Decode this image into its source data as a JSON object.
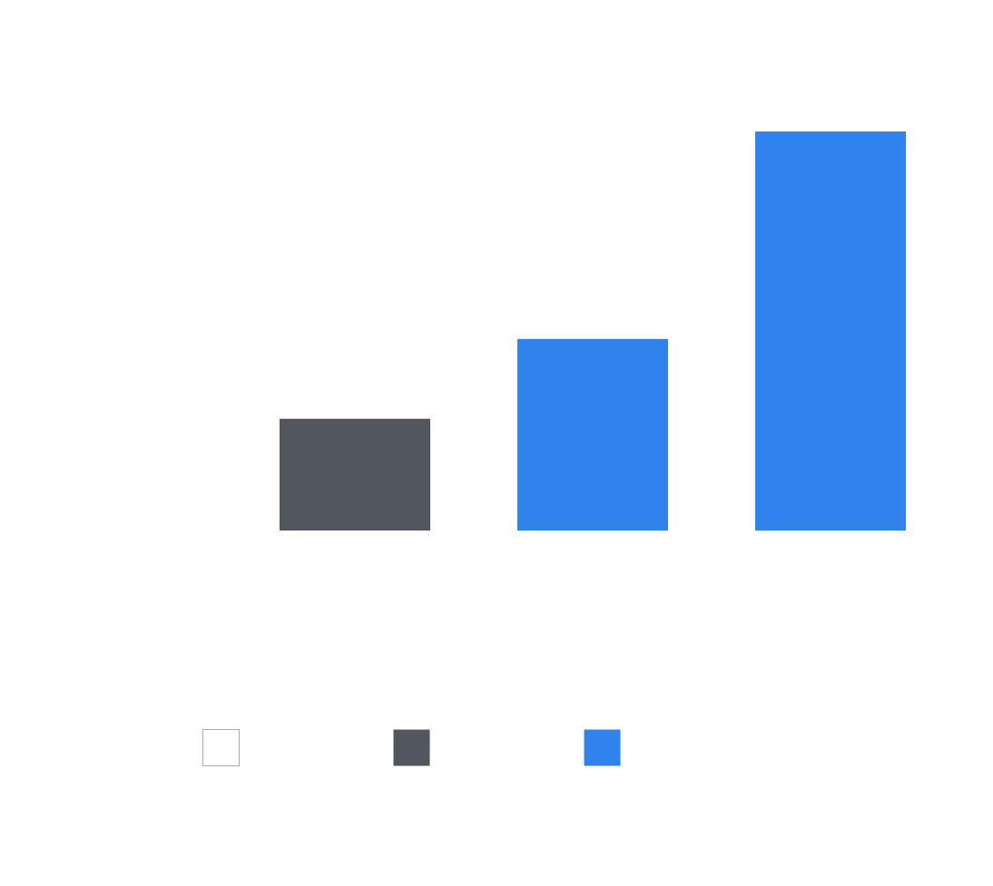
{
  "chart_data": {
    "type": "bar",
    "title": "",
    "xlabel": "",
    "ylabel": "",
    "grid": false,
    "legend_position": "bottom",
    "categories": [
      "",
      "",
      ""
    ],
    "values": [
      28,
      48,
      100
    ],
    "bar_colors": [
      "#51565f",
      "#3083ed",
      "#3083ed"
    ],
    "ylim": [
      0,
      100
    ],
    "legend": [
      {
        "label": "",
        "color": "#ffffff",
        "border": "#aaaaaa"
      },
      {
        "label": "",
        "color": "#51565f",
        "border": ""
      },
      {
        "label": "",
        "color": "#3083ed",
        "border": ""
      }
    ]
  }
}
